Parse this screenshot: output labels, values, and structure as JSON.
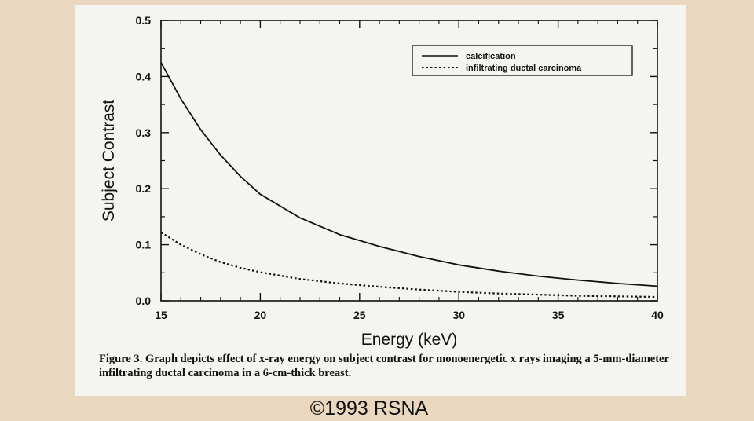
{
  "chart_data": {
    "type": "line",
    "xlabel": "Energy (keV)",
    "ylabel": "Subject Contrast",
    "xlim": [
      15,
      40
    ],
    "ylim": [
      0.0,
      0.5
    ],
    "x_ticks": [
      "15",
      "20",
      "25",
      "30",
      "35",
      "40"
    ],
    "y_ticks": [
      "0.0",
      "0.1",
      "0.2",
      "0.3",
      "0.4",
      "0.5"
    ],
    "grid": false,
    "legend_position": "top-right",
    "x": [
      15,
      16,
      17,
      18,
      19,
      20,
      22,
      24,
      26,
      28,
      30,
      32,
      34,
      36,
      38,
      40
    ],
    "series": [
      {
        "name": "calcification",
        "style": "solid",
        "values": [
          0.425,
          0.36,
          0.305,
          0.26,
          0.222,
          0.19,
          0.148,
          0.118,
          0.097,
          0.079,
          0.064,
          0.053,
          0.044,
          0.037,
          0.031,
          0.026
        ]
      },
      {
        "name": "infiltrating ductal carcinoma",
        "style": "dotted",
        "values": [
          0.122,
          0.1,
          0.083,
          0.069,
          0.059,
          0.051,
          0.039,
          0.031,
          0.025,
          0.02,
          0.016,
          0.013,
          0.011,
          0.009,
          0.008,
          0.007
        ]
      }
    ]
  },
  "caption": {
    "label": "Figure 3.",
    "text": "Graph depicts effect of x-ray energy on subject contrast for monoenergetic x rays imaging a 5-mm-diameter infiltrating ductal carcinoma in a 6-cm-thick breast."
  },
  "copyright": "©1993 RSNA",
  "colors": {
    "slide_background": "#e9d8bf",
    "figure_background": "#f4f4f1",
    "ink": "#111111"
  }
}
